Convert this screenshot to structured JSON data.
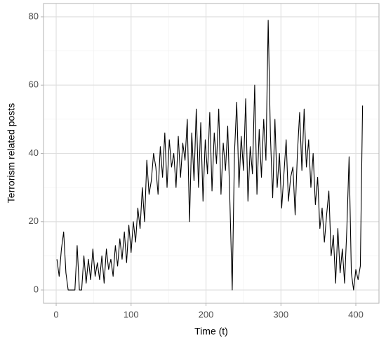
{
  "chart_data": {
    "type": "line",
    "x_label": "Time (t)",
    "y_label": "Terrorism related posts",
    "color": "#000000",
    "grid": true,
    "xlim": [
      -16.9,
      430.9
    ],
    "ylim": [
      -3.9,
      83.9
    ],
    "xticks": [
      0,
      100,
      200,
      300,
      400
    ],
    "yticks": [
      0,
      20,
      40,
      60,
      80
    ],
    "x_minor_ticks": [
      50,
      150,
      250,
      350
    ],
    "y_minor_ticks": [
      10,
      30,
      50,
      70
    ],
    "x": [
      1,
      4,
      7,
      10,
      13,
      16,
      19,
      22,
      25,
      28,
      31,
      34,
      37,
      40,
      43,
      46,
      49,
      52,
      55,
      58,
      61,
      64,
      67,
      70,
      73,
      76,
      79,
      82,
      85,
      88,
      91,
      94,
      97,
      100,
      103,
      106,
      109,
      112,
      115,
      118,
      121,
      124,
      127,
      130,
      133,
      136,
      139,
      142,
      145,
      148,
      151,
      154,
      157,
      160,
      163,
      166,
      169,
      172,
      175,
      178,
      181,
      184,
      187,
      190,
      193,
      196,
      199,
      202,
      205,
      208,
      211,
      214,
      217,
      220,
      223,
      226,
      229,
      232,
      235,
      238,
      241,
      244,
      247,
      250,
      253,
      256,
      259,
      262,
      265,
      268,
      271,
      274,
      277,
      280,
      283,
      286,
      289,
      292,
      295,
      298,
      301,
      304,
      307,
      310,
      313,
      316,
      319,
      322,
      325,
      328,
      331,
      334,
      337,
      340,
      343,
      346,
      349,
      352,
      355,
      358,
      361,
      364,
      367,
      370,
      373,
      376,
      379,
      382,
      385,
      388,
      391,
      394,
      397,
      400,
      403,
      406,
      409
    ],
    "series": [
      {
        "name": "posts",
        "color": "#000000",
        "values": [
          9,
          4,
          12,
          17,
          5,
          0,
          0,
          0,
          0,
          13,
          0,
          0,
          10,
          2,
          9,
          3,
          12,
          4,
          8,
          3,
          10,
          2,
          12,
          6,
          9,
          4,
          13,
          7,
          15,
          9,
          17,
          8,
          19,
          11,
          20,
          14,
          24,
          18,
          30,
          20,
          38,
          28,
          32,
          40,
          36,
          28,
          42,
          33,
          46,
          30,
          44,
          36,
          40,
          30,
          45,
          33,
          43,
          38,
          50,
          20,
          46,
          32,
          53,
          30,
          49,
          26,
          44,
          34,
          52,
          29,
          46,
          37,
          53,
          28,
          43,
          35,
          48,
          25,
          0,
          40,
          55,
          30,
          45,
          35,
          56,
          26,
          42,
          34,
          60,
          28,
          47,
          33,
          50,
          38,
          79,
          45,
          27,
          50,
          30,
          40,
          24,
          34,
          44,
          26,
          33,
          36,
          22,
          40,
          52,
          35,
          53,
          36,
          44,
          30,
          40,
          25,
          33,
          18,
          24,
          14,
          22,
          29,
          10,
          16,
          2,
          18,
          5,
          12,
          2,
          18,
          39,
          5,
          0,
          6,
          3,
          7,
          54
        ]
      }
    ]
  }
}
